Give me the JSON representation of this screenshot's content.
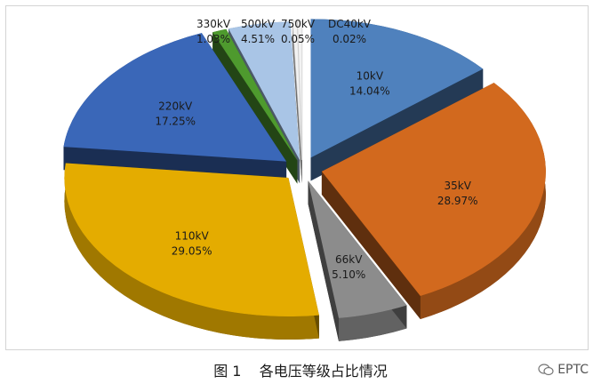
{
  "chart_data": {
    "type": "pie",
    "style": "3d-exploded",
    "title": "",
    "categories": [
      "10kV",
      "35kV",
      "66kV",
      "110kV",
      "220kV",
      "330kV",
      "500kV",
      "750kV",
      "DC40kV"
    ],
    "values": [
      14.04,
      28.97,
      5.1,
      29.05,
      17.25,
      1.03,
      4.51,
      0.05,
      0.02
    ],
    "labels": [
      "14.04%",
      "28.97%",
      "5.10%",
      "29.05%",
      "17.25%",
      "1.03%",
      "4.51%",
      "0.05%",
      "0.02%"
    ],
    "colors": {
      "10kV": "#4f81bd",
      "35kV": "#d2691e",
      "66kV": "#8c8c8c",
      "110kV": "#e4ac00",
      "220kV": "#3a67b8",
      "330kV": "#4e9a2e",
      "500kV": "#a9c5e6",
      "750kV": "#f2f2f2",
      "DC40kV": "#f2f2f2"
    },
    "legend": "none"
  },
  "caption": "图 1    各电压等级占比情况",
  "watermark": "EPTC"
}
